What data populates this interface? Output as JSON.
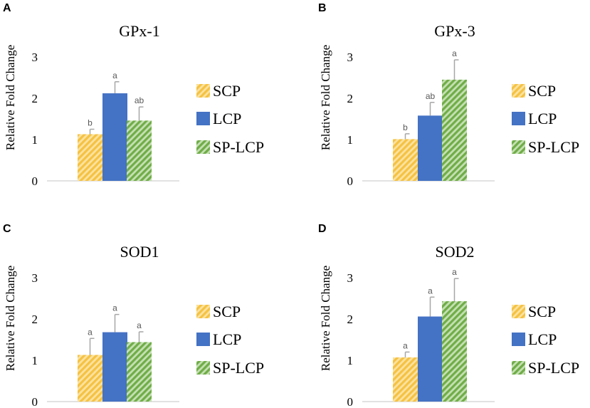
{
  "chart_data": [
    {
      "panel": "A",
      "type": "bar",
      "title": "GPx-1",
      "ylabel": "Relative Fold Change",
      "xlabel": "",
      "ylim": [
        0,
        3
      ],
      "yticks": [
        "0",
        "1",
        "2",
        "3"
      ],
      "categories": [
        "SCP",
        "LCP",
        "SP-LCP"
      ],
      "values": [
        1.13,
        2.12,
        1.46
      ],
      "errors": [
        0.12,
        0.28,
        0.33
      ],
      "significance": [
        "b",
        "a",
        "ab"
      ],
      "legend": [
        "SCP",
        "LCP",
        "SP-LCP"
      ],
      "legend_position": "right"
    },
    {
      "panel": "B",
      "type": "bar",
      "title": "GPx-3",
      "ylabel": "Relative Fold Change",
      "xlabel": "",
      "ylim": [
        0,
        3
      ],
      "yticks": [
        "0",
        "1",
        "2",
        "3"
      ],
      "categories": [
        "SCP",
        "LCP",
        "SP-LCP"
      ],
      "values": [
        1.01,
        1.58,
        2.45
      ],
      "errors": [
        0.13,
        0.32,
        0.48
      ],
      "significance": [
        "b",
        "ab",
        "a"
      ],
      "legend": [
        "SCP",
        "LCP",
        "SP-LCP"
      ],
      "legend_position": "right"
    },
    {
      "panel": "C",
      "type": "bar",
      "title": "SOD1",
      "ylabel": "Relative Fold Change",
      "xlabel": "",
      "ylim": [
        0,
        3
      ],
      "yticks": [
        "0",
        "1",
        "2",
        "3"
      ],
      "categories": [
        "SCP",
        "LCP",
        "SP-LCP"
      ],
      "values": [
        1.13,
        1.68,
        1.44
      ],
      "errors": [
        0.4,
        0.43,
        0.25
      ],
      "significance": [
        "a",
        "a",
        "a"
      ],
      "legend": [
        "SCP",
        "LCP",
        "SP-LCP"
      ],
      "legend_position": "right"
    },
    {
      "panel": "D",
      "type": "bar",
      "title": "SOD2",
      "ylabel": "Relative Fold Change",
      "xlabel": "",
      "ylim": [
        0,
        3
      ],
      "yticks": [
        "0",
        "1",
        "2",
        "3"
      ],
      "categories": [
        "SCP",
        "LCP",
        "SP-LCP"
      ],
      "values": [
        1.07,
        2.06,
        2.43
      ],
      "errors": [
        0.13,
        0.47,
        0.55
      ],
      "significance": [
        "a",
        "a",
        "a"
      ],
      "legend": [
        "SCP",
        "LCP",
        "SP-LCP"
      ],
      "legend_position": "right"
    }
  ],
  "colors": {
    "SCP": "#f5c242",
    "LCP": "#4472c4",
    "SP-LCP": "#70ad47",
    "error_bar": "#a6a6a6",
    "axis": "#d9d9d9",
    "significance": "#595959"
  }
}
